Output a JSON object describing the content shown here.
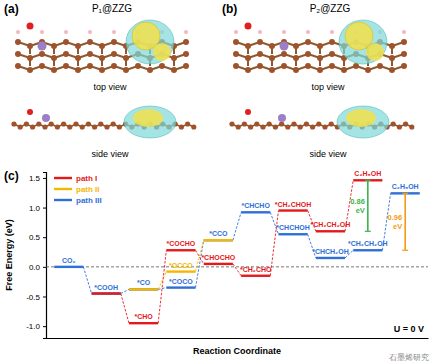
{
  "panels": [
    {
      "label": "(a)",
      "title": "P₁@ZZG",
      "views": [
        "top view",
        "side view"
      ]
    },
    {
      "label": "(b)",
      "title": "P₂@ZZG",
      "views": [
        "top view",
        "side view"
      ]
    }
  ],
  "chart_data": {
    "type": "energy",
    "panel_label": "(c)",
    "x_label": "Reaction Coordinate",
    "y_label": "Free Energy (eV)",
    "categories": [
      null,
      null,
      null,
      null,
      null,
      null,
      null,
      null,
      null,
      null
    ],
    "tick_labels": "y",
    "ylim": [
      -1.2,
      1.6
    ],
    "yticks": [
      {
        "value": -1,
        "label": "-1.0"
      },
      {
        "value": -0.5,
        "label": "-0.5"
      },
      {
        "value": 0,
        "label": "0.0"
      },
      {
        "value": 0.5,
        "label": "0.5"
      },
      {
        "value": 1,
        "label": "1.0"
      },
      {
        "value": 1.5,
        "label": "1.5"
      }
    ],
    "reference_line": 0,
    "legend": "top-left",
    "series": [
      {
        "name": "path I",
        "color": "#e3191c",
        "line_style": "dashed",
        "values": [
          null,
          -0.45,
          -0.95,
          0.28,
          0.05,
          -0.15,
          0.95,
          0.6,
          1.46,
          null
        ],
        "labels": [
          null,
          null,
          "*CHO",
          "*COCHO",
          "*CHOCHO",
          "*CH₂CHO",
          "*CH₂CHOH",
          "*CH₂CH₂OH",
          "C₂H₅OH",
          null
        ]
      },
      {
        "name": "path II",
        "color": "#f5b800",
        "line_style": "dashed",
        "values": [
          null,
          null,
          -0.38,
          -0.08,
          0.45,
          null,
          null,
          null,
          null,
          null
        ],
        "labels": [
          null,
          null,
          null,
          "*OCCO",
          null,
          null,
          null,
          null,
          null,
          null
        ]
      },
      {
        "name": "path III",
        "color": "#2f6fd6",
        "line_style": "dashed",
        "values": [
          0.0,
          -0.45,
          -0.38,
          -0.35,
          0.45,
          0.92,
          0.55,
          0.15,
          0.28,
          1.24
        ],
        "labels": [
          "CO₂",
          "*COOH",
          "*CO",
          "*COCO",
          "*CCO",
          "*CHCHO",
          "*CHCHOH",
          "*CHCH₂OH",
          "*CH₂CH₂OH",
          "C₂H₅OH"
        ]
      }
    ],
    "annotations": [
      {
        "text": "0.86 eV",
        "series": "path I",
        "color": "#3cb44b"
      },
      {
        "text": "0.96 eV",
        "series": "path III",
        "color": "#f39c12"
      },
      {
        "text": "U = 0 V"
      }
    ]
  },
  "watermark": "石墨烯研究"
}
